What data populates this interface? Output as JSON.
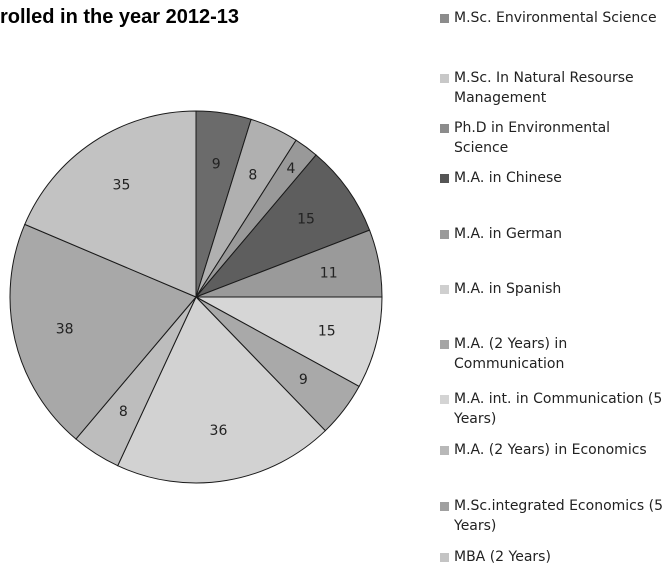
{
  "chart_data": {
    "type": "pie",
    "title": "rolled in the year 2012-13",
    "slices": [
      {
        "label": "M.Sc. Environmental Science",
        "value": 0,
        "color": "#8c8c8c"
      },
      {
        "label": "M.Sc. In Natural Resourse Management",
        "value": 0,
        "color": "#c8c8c8"
      },
      {
        "label": "Ph.D in Environmental Science",
        "value": 9,
        "color": "#6b6b6b"
      },
      {
        "label": "M.A. in Chinese",
        "value": 8,
        "color": "#b0b0b0"
      },
      {
        "label": "M.A. in German",
        "value": 4,
        "color": "#999999"
      },
      {
        "label": "M.A. in Spanish",
        "value": 15,
        "color": "#5e5e5e"
      },
      {
        "label": "M.A. (2 Years) in Communication",
        "value": 11,
        "color": "#9a9a9a"
      },
      {
        "label": "M.A. int. in Communication (5 Years)",
        "value": 15,
        "color": "#d6d6d6"
      },
      {
        "label": "M.A. (2 Years) in Economics",
        "value": 9,
        "color": "#a9a9a9"
      },
      {
        "label": "M.Sc.integrated Economics (5 Years)",
        "value": 36,
        "color": "#d2d2d2"
      },
      {
        "label": "MBA (2 Years)",
        "value": 8,
        "color": "#bdbdbd"
      },
      {
        "label": "",
        "value": 38,
        "color": "#a8a8a8"
      },
      {
        "label": "",
        "value": 35,
        "color": "#c2c2c2"
      }
    ],
    "legend_position": "right"
  },
  "legend": [
    {
      "label": "M.Sc. Environmental Science",
      "color": "#8c8c8c"
    },
    {
      "label": "M.Sc. In Natural Resourse Management",
      "color": "#c8c8c8"
    },
    {
      "label": "Ph.D in Environmental Science",
      "color": "#8c8c8c"
    },
    {
      "label": "M.A. in Chinese",
      "color": "#555555"
    },
    {
      "label": "M.A. in German",
      "color": "#9a9a9a"
    },
    {
      "label": "M.A. in Spanish",
      "color": "#cfcfcf"
    },
    {
      "label": "M.A. (2 Years) in Communication",
      "color": "#a5a5a5"
    },
    {
      "label": "M.A. int. in Communication (5 Years)",
      "color": "#d4d4d4"
    },
    {
      "label": "M.A. (2 Years) in Economics",
      "color": "#b8b8b8"
    },
    {
      "label": "M.Sc.integrated Economics (5 Years)",
      "color": "#a0a0a0"
    },
    {
      "label": "MBA (2 Years)",
      "color": "#c4c4c4"
    }
  ]
}
